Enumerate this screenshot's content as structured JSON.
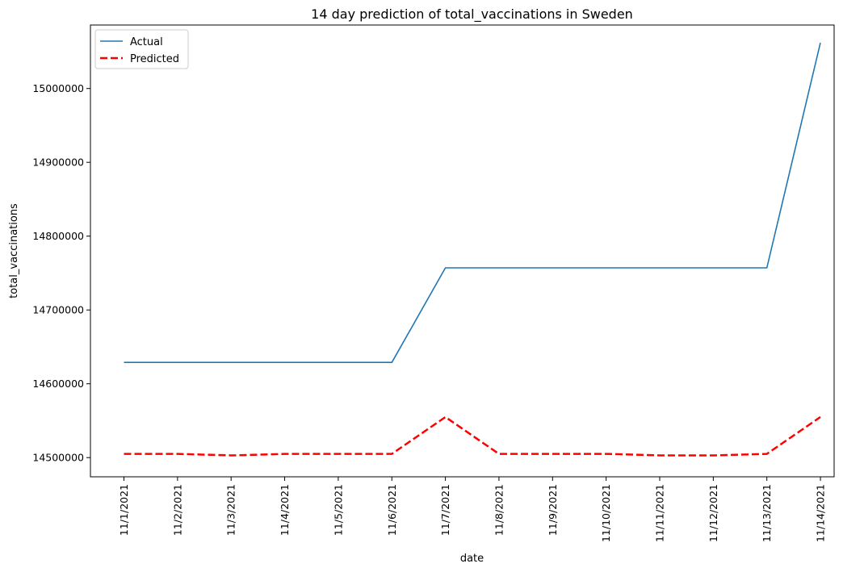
{
  "chart_data": {
    "type": "line",
    "title": "14 day prediction of total_vaccinations in Sweden",
    "xlabel": "date",
    "ylabel": "total_vaccinations",
    "categories": [
      "11/1/2021",
      "11/2/2021",
      "11/3/2021",
      "11/4/2021",
      "11/5/2021",
      "11/6/2021",
      "11/7/2021",
      "11/8/2021",
      "11/9/2021",
      "11/10/2021",
      "11/11/2021",
      "11/12/2021",
      "11/13/2021",
      "11/14/2021"
    ],
    "yticks": [
      14500000,
      14600000,
      14700000,
      14800000,
      14900000,
      15000000
    ],
    "ytick_labels": [
      "14500000",
      "14600000",
      "14700000",
      "14800000",
      "14900000",
      "15000000"
    ],
    "ylim": [
      14474000,
      15086000
    ],
    "grid": false,
    "legend": "upper left",
    "series": [
      {
        "name": "Actual",
        "color": "#1f77b4",
        "style": "solid",
        "values": [
          14629000,
          14629000,
          14629000,
          14629000,
          14629000,
          14629000,
          14757000,
          14757000,
          14757000,
          14757000,
          14757000,
          14757000,
          14757000,
          15062000
        ]
      },
      {
        "name": "Predicted",
        "color": "#ff0000",
        "style": "dashed",
        "values": [
          14505000,
          14505000,
          14503000,
          14505000,
          14505000,
          14505000,
          14555000,
          14505000,
          14505000,
          14505000,
          14503000,
          14503000,
          14505000,
          14555000
        ]
      }
    ]
  }
}
